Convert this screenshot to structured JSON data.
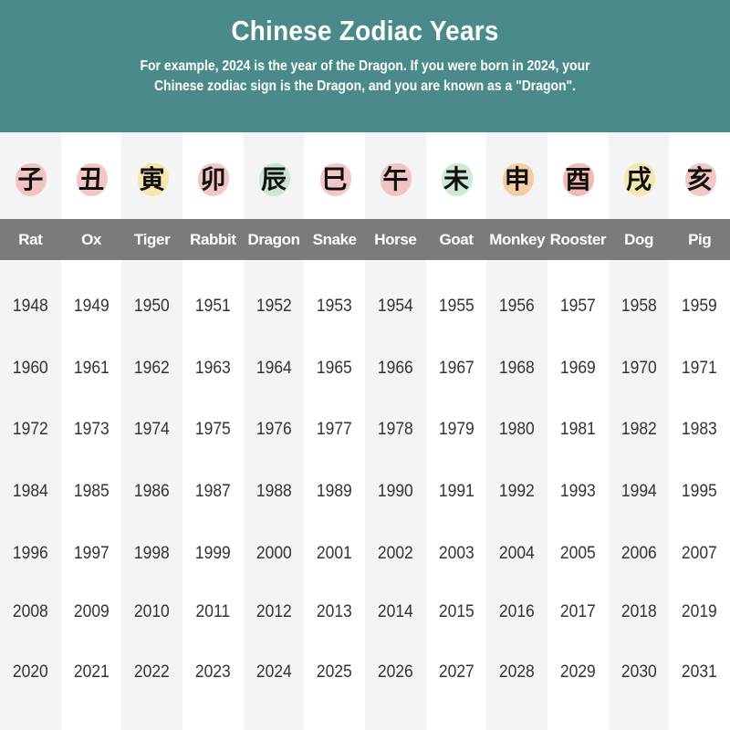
{
  "header": {
    "title": "Chinese Zodiac Years",
    "subtitle_line1": "For example, 2024 is the year of the Dragon. If you were born in 2024, your",
    "subtitle_line2": "Chinese zodiac sign is the Dragon, and you are known as a \"Dragon\"."
  },
  "signs": [
    {
      "name": "Rat",
      "glyph": "子",
      "color": "#f2b3b3",
      "years": [
        "1948",
        "1960",
        "1972",
        "1984",
        "1996",
        "2008",
        "2020"
      ]
    },
    {
      "name": "Ox",
      "glyph": "丑",
      "color": "#f2b3b3",
      "years": [
        "1949",
        "1961",
        "1973",
        "1985",
        "1997",
        "2009",
        "2021"
      ]
    },
    {
      "name": "Tiger",
      "glyph": "寅",
      "color": "#f6e39a",
      "years": [
        "1950",
        "1962",
        "1974",
        "1986",
        "1998",
        "2010",
        "2022"
      ]
    },
    {
      "name": "Rabbit",
      "glyph": "卯",
      "color": "#f2b3b3",
      "years": [
        "1951",
        "1963",
        "1975",
        "1987",
        "1999",
        "2011",
        "2023"
      ]
    },
    {
      "name": "Dragon",
      "glyph": "辰",
      "color": "#bfe3c6",
      "years": [
        "1952",
        "1964",
        "1976",
        "1988",
        "2000",
        "2012",
        "2024"
      ]
    },
    {
      "name": "Snake",
      "glyph": "巳",
      "color": "#f2b3b3",
      "years": [
        "1953",
        "1965",
        "1977",
        "1989",
        "2001",
        "2013",
        "2025"
      ]
    },
    {
      "name": "Horse",
      "glyph": "午",
      "color": "#f2b3b3",
      "years": [
        "1954",
        "1966",
        "1978",
        "1990",
        "2002",
        "2014",
        "2026"
      ]
    },
    {
      "name": "Goat",
      "glyph": "未",
      "color": "#bfe3c6",
      "years": [
        "1955",
        "1967",
        "1979",
        "1991",
        "2003",
        "2015",
        "2027"
      ]
    },
    {
      "name": "Monkey",
      "glyph": "申",
      "color": "#f6c08a",
      "years": [
        "1956",
        "1968",
        "1980",
        "1992",
        "2004",
        "2016",
        "2028"
      ]
    },
    {
      "name": "Rooster",
      "glyph": "酉",
      "color": "#f2a0a0",
      "years": [
        "1957",
        "1969",
        "1981",
        "1993",
        "2005",
        "2017",
        "2029"
      ]
    },
    {
      "name": "Dog",
      "glyph": "戌",
      "color": "#f6e39a",
      "years": [
        "1958",
        "1970",
        "1982",
        "1994",
        "2006",
        "2018",
        "2030"
      ]
    },
    {
      "name": "Pig",
      "glyph": "亥",
      "color": "#f2b3b3",
      "years": [
        "1959",
        "1971",
        "1983",
        "1995",
        "2007",
        "2019",
        "2031"
      ]
    }
  ]
}
